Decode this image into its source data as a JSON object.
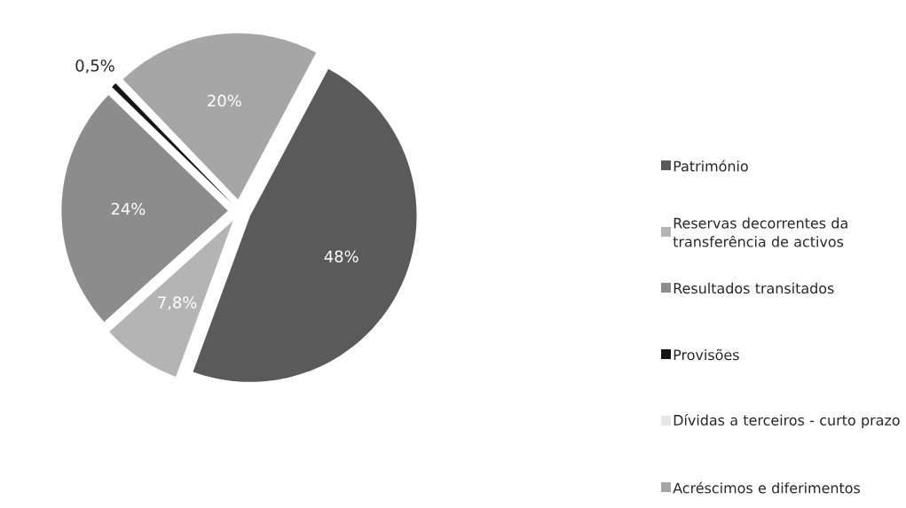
{
  "chart_data": {
    "type": "pie",
    "categories": [
      "Património",
      "Reservas decorrentes da transferência de activos",
      "Resultados transitados",
      "Provisões",
      "Dívidas a terceiros - curto prazo",
      "Acréscimos e diferimentos"
    ],
    "values": [
      48,
      7.8,
      24,
      0.5,
      0.1,
      20
    ],
    "colors": [
      "#5a5a5a",
      "#b4b4b4",
      "#8c8c8c",
      "#141414",
      "#e6e6e6",
      "#a6a6a6"
    ],
    "value_labels": [
      "48%",
      "7,8%",
      "24%",
      "0,5%",
      null,
      "20%"
    ],
    "legend": "right"
  }
}
